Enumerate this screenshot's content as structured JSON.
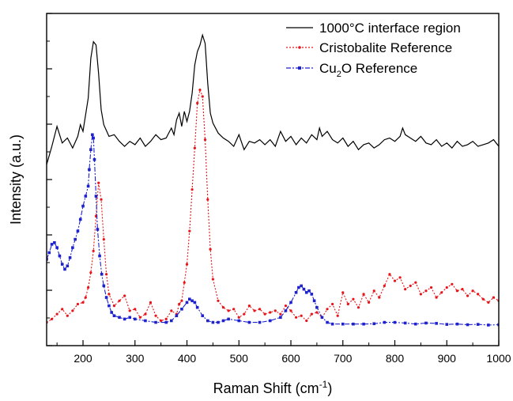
{
  "chart_data": {
    "type": "line",
    "title": "",
    "xlabel": "Raman Shift (cm",
    "xlabel_sup": "-1",
    "xlabel_tail": ")",
    "ylabel": "Intensity (a.u.)",
    "xlim": [
      130,
      1000
    ],
    "ylim": [
      0,
      1
    ],
    "x_ticks": [
      200,
      300,
      400,
      500,
      600,
      700,
      800,
      900,
      1000
    ],
    "x_tick_labels": [
      "200",
      "300",
      "400",
      "500",
      "600",
      "700",
      "800",
      "900",
      "1000"
    ],
    "y_tick_labels_shown": false,
    "grid": false,
    "legend_position": "top-right",
    "series": [
      {
        "name": "1000°C interface region",
        "legend_main": "1000°C interface region",
        "color": "#000000",
        "style": "solid",
        "marker": "none",
        "x": [
          130,
          140,
          150,
          160,
          170,
          180,
          190,
          195,
          200,
          205,
          210,
          215,
          220,
          225,
          230,
          235,
          240,
          250,
          260,
          270,
          280,
          290,
          300,
          310,
          320,
          330,
          340,
          350,
          360,
          370,
          375,
          380,
          385,
          390,
          395,
          400,
          405,
          410,
          415,
          420,
          425,
          430,
          435,
          440,
          445,
          450,
          460,
          470,
          480,
          490,
          500,
          510,
          520,
          530,
          540,
          550,
          560,
          570,
          580,
          590,
          600,
          610,
          620,
          630,
          640,
          650,
          655,
          660,
          670,
          680,
          690,
          700,
          710,
          720,
          730,
          740,
          750,
          760,
          770,
          780,
          790,
          800,
          810,
          815,
          820,
          830,
          840,
          850,
          860,
          870,
          880,
          890,
          900,
          910,
          920,
          930,
          940,
          950,
          960,
          970,
          980,
          990,
          1000
        ],
        "y": [
          0.545,
          0.6,
          0.66,
          0.61,
          0.625,
          0.595,
          0.63,
          0.665,
          0.645,
          0.695,
          0.745,
          0.865,
          0.915,
          0.905,
          0.82,
          0.71,
          0.665,
          0.63,
          0.635,
          0.615,
          0.6,
          0.615,
          0.605,
          0.625,
          0.6,
          0.615,
          0.635,
          0.62,
          0.625,
          0.655,
          0.635,
          0.68,
          0.7,
          0.66,
          0.705,
          0.675,
          0.705,
          0.76,
          0.845,
          0.885,
          0.905,
          0.935,
          0.91,
          0.79,
          0.7,
          0.67,
          0.64,
          0.625,
          0.615,
          0.6,
          0.635,
          0.59,
          0.615,
          0.61,
          0.62,
          0.605,
          0.62,
          0.6,
          0.645,
          0.615,
          0.63,
          0.605,
          0.625,
          0.61,
          0.635,
          0.62,
          0.655,
          0.63,
          0.645,
          0.62,
          0.61,
          0.625,
          0.6,
          0.615,
          0.59,
          0.605,
          0.61,
          0.595,
          0.605,
          0.62,
          0.625,
          0.615,
          0.63,
          0.655,
          0.635,
          0.625,
          0.615,
          0.63,
          0.61,
          0.605,
          0.62,
          0.6,
          0.61,
          0.595,
          0.615,
          0.6,
          0.605,
          0.615,
          0.6,
          0.605,
          0.61,
          0.62,
          0.6
        ]
      },
      {
        "name": "Cristobalite Reference",
        "legend_main": "Cristobalite Reference",
        "color": "#e8141a",
        "style": "dotted",
        "marker": "circle",
        "x": [
          130,
          140,
          150,
          160,
          170,
          180,
          190,
          200,
          205,
          210,
          215,
          220,
          225,
          230,
          235,
          240,
          245,
          250,
          260,
          270,
          280,
          290,
          300,
          310,
          320,
          330,
          340,
          350,
          360,
          370,
          380,
          385,
          390,
          395,
          400,
          405,
          410,
          415,
          420,
          425,
          430,
          435,
          440,
          445,
          450,
          460,
          470,
          480,
          490,
          500,
          510,
          520,
          530,
          540,
          550,
          560,
          570,
          580,
          590,
          600,
          610,
          620,
          630,
          640,
          650,
          660,
          670,
          680,
          690,
          700,
          710,
          720,
          730,
          740,
          750,
          760,
          770,
          780,
          790,
          800,
          810,
          820,
          830,
          840,
          850,
          860,
          870,
          880,
          890,
          900,
          910,
          920,
          930,
          940,
          950,
          960,
          970,
          980,
          990,
          1000
        ],
        "y": [
          0.07,
          0.08,
          0.095,
          0.11,
          0.09,
          0.105,
          0.125,
          0.13,
          0.145,
          0.175,
          0.22,
          0.285,
          0.39,
          0.49,
          0.44,
          0.32,
          0.215,
          0.155,
          0.12,
          0.135,
          0.15,
          0.105,
          0.11,
          0.085,
          0.095,
          0.13,
          0.09,
          0.075,
          0.08,
          0.105,
          0.095,
          0.125,
          0.135,
          0.19,
          0.245,
          0.345,
          0.47,
          0.595,
          0.73,
          0.77,
          0.75,
          0.62,
          0.44,
          0.29,
          0.2,
          0.135,
          0.115,
          0.105,
          0.11,
          0.085,
          0.095,
          0.12,
          0.105,
          0.11,
          0.095,
          0.1,
          0.105,
          0.095,
          0.12,
          0.105,
          0.085,
          0.09,
          0.075,
          0.095,
          0.1,
          0.085,
          0.11,
          0.125,
          0.09,
          0.16,
          0.125,
          0.14,
          0.115,
          0.155,
          0.13,
          0.165,
          0.145,
          0.18,
          0.215,
          0.195,
          0.205,
          0.17,
          0.18,
          0.19,
          0.155,
          0.165,
          0.175,
          0.145,
          0.16,
          0.175,
          0.185,
          0.165,
          0.17,
          0.15,
          0.165,
          0.155,
          0.14,
          0.13,
          0.145,
          0.135
        ]
      },
      {
        "name": "Cu2O Reference",
        "legend_main": "Cu",
        "legend_sub": "2",
        "legend_tail": "O Reference",
        "color": "#1e22cc",
        "style": "dashdot",
        "marker": "square",
        "x": [
          130,
          135,
          140,
          145,
          150,
          155,
          160,
          165,
          170,
          175,
          180,
          185,
          190,
          195,
          200,
          205,
          210,
          212,
          215,
          218,
          220,
          222,
          225,
          228,
          232,
          236,
          240,
          245,
          250,
          255,
          260,
          270,
          280,
          290,
          300,
          320,
          340,
          360,
          370,
          380,
          390,
          400,
          405,
          410,
          415,
          420,
          430,
          440,
          450,
          460,
          470,
          480,
          500,
          520,
          540,
          560,
          580,
          590,
          600,
          610,
          615,
          620,
          625,
          630,
          635,
          640,
          645,
          650,
          660,
          670,
          680,
          700,
          720,
          740,
          760,
          780,
          800,
          820,
          840,
          860,
          880,
          900,
          920,
          940,
          960,
          980,
          1000
        ],
        "y": [
          0.26,
          0.28,
          0.305,
          0.31,
          0.295,
          0.27,
          0.245,
          0.23,
          0.24,
          0.265,
          0.295,
          0.32,
          0.345,
          0.38,
          0.42,
          0.45,
          0.48,
          0.53,
          0.59,
          0.635,
          0.625,
          0.56,
          0.45,
          0.35,
          0.27,
          0.215,
          0.18,
          0.145,
          0.12,
          0.1,
          0.09,
          0.085,
          0.08,
          0.085,
          0.08,
          0.075,
          0.07,
          0.07,
          0.075,
          0.09,
          0.11,
          0.13,
          0.14,
          0.135,
          0.13,
          0.115,
          0.09,
          0.075,
          0.07,
          0.07,
          0.075,
          0.08,
          0.075,
          0.07,
          0.07,
          0.075,
          0.085,
          0.105,
          0.13,
          0.16,
          0.175,
          0.18,
          0.17,
          0.16,
          0.165,
          0.155,
          0.135,
          0.115,
          0.085,
          0.07,
          0.065,
          0.065,
          0.065,
          0.065,
          0.066,
          0.07,
          0.07,
          0.068,
          0.065,
          0.068,
          0.067,
          0.064,
          0.065,
          0.063,
          0.064,
          0.062,
          0.063
        ]
      }
    ]
  }
}
